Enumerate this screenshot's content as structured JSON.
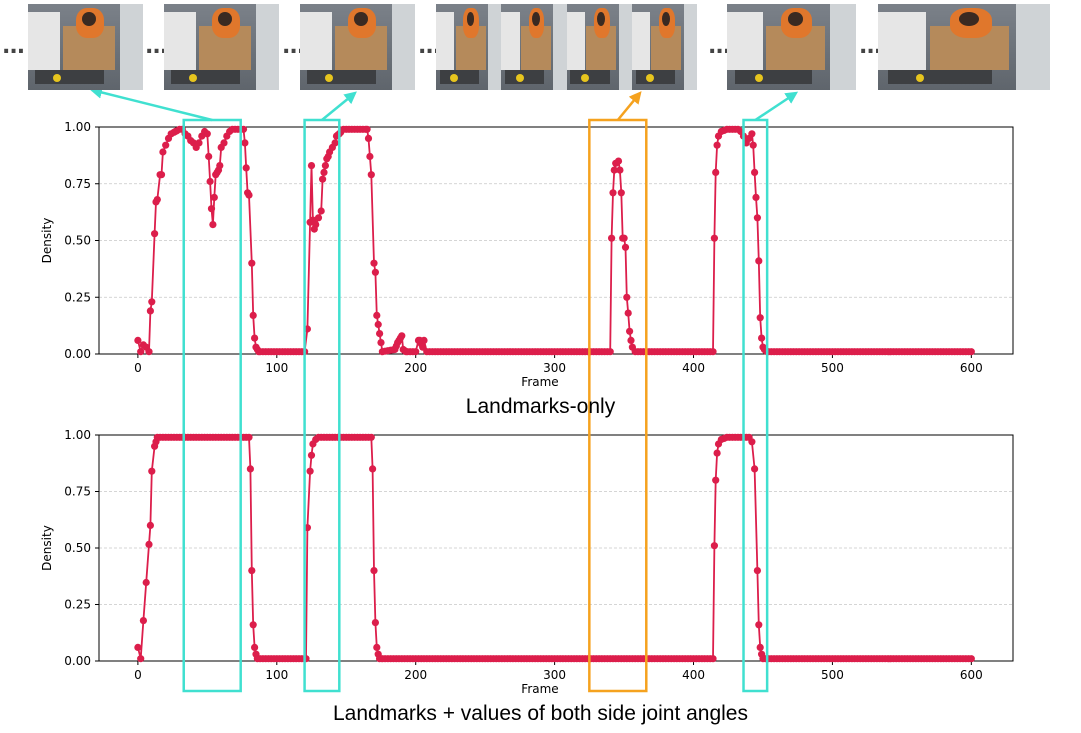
{
  "captions": {
    "top": "Landmarks-only",
    "bottom": "Landmarks + values of both side joint angles"
  },
  "colors": {
    "series": "#dc1e4b",
    "highlight_cyan": "#40e0d0",
    "highlight_orange": "#f5a21f",
    "ellipsis": "#444444"
  },
  "video_strip": {
    "ellipsis": "...",
    "frames": [
      {
        "name": "frame-1",
        "panels": 1
      },
      {
        "name": "frame-2",
        "panels": 1
      },
      {
        "name": "frame-3",
        "panels": 1
      },
      {
        "name": "frame-4",
        "panels": 3
      },
      {
        "name": "frame-5",
        "panels": 1
      },
      {
        "name": "frame-6",
        "panels": 1
      },
      {
        "name": "frame-7",
        "panels": 1
      }
    ]
  },
  "highlights": [
    {
      "name": "highlight-1",
      "color": "cyan",
      "x_range": [
        33,
        74
      ]
    },
    {
      "name": "highlight-2",
      "color": "cyan",
      "x_range": [
        120,
        145
      ]
    },
    {
      "name": "highlight-3",
      "color": "orange",
      "x_range": [
        325,
        366
      ]
    },
    {
      "name": "highlight-4",
      "color": "cyan",
      "x_range": [
        436,
        453
      ]
    }
  ],
  "chart_data": [
    {
      "type": "line",
      "title": "",
      "xlabel": "Frame",
      "ylabel": "Density",
      "xlim": [
        -28,
        630
      ],
      "ylim": [
        0,
        1
      ],
      "xticks": [
        0,
        100,
        200,
        300,
        400,
        500,
        600
      ],
      "yticks": [
        "0.00",
        "0.25",
        "0.50",
        "0.75",
        "1.00"
      ],
      "grid": "horizontal-dashed",
      "default_value": 0.01,
      "points": [
        [
          0,
          0.06
        ],
        [
          2,
          0.01
        ],
        [
          4,
          0.04
        ],
        [
          6,
          0.03
        ],
        [
          8,
          0.01
        ],
        [
          9,
          0.19
        ],
        [
          10,
          0.23
        ],
        [
          12,
          0.53
        ],
        [
          13,
          0.67
        ],
        [
          14,
          0.68
        ],
        [
          16,
          0.79
        ],
        [
          17,
          0.79
        ],
        [
          18,
          0.89
        ],
        [
          20,
          0.92
        ],
        [
          22,
          0.95
        ],
        [
          24,
          0.97
        ],
        [
          27,
          0.98
        ],
        [
          30,
          0.99
        ],
        [
          32,
          0.99
        ],
        [
          34,
          0.97
        ],
        [
          36,
          0.96
        ],
        [
          38,
          0.94
        ],
        [
          40,
          0.93
        ],
        [
          42,
          0.91
        ],
        [
          44,
          0.93
        ],
        [
          46,
          0.96
        ],
        [
          48,
          0.98
        ],
        [
          50,
          0.97
        ],
        [
          51,
          0.87
        ],
        [
          52,
          0.76
        ],
        [
          53,
          0.64
        ],
        [
          54,
          0.57
        ],
        [
          55,
          0.69
        ],
        [
          56,
          0.79
        ],
        [
          57,
          0.8
        ],
        [
          58,
          0.81
        ],
        [
          59,
          0.83
        ],
        [
          60,
          0.91
        ],
        [
          62,
          0.93
        ],
        [
          64,
          0.96
        ],
        [
          66,
          0.98
        ],
        [
          68,
          0.99
        ],
        [
          72,
          0.99
        ],
        [
          76,
          0.99
        ],
        [
          77,
          0.93
        ],
        [
          79,
          0.71
        ],
        [
          80,
          0.7
        ],
        [
          82,
          0.4
        ],
        [
          83,
          0.17
        ],
        [
          84,
          0.07
        ],
        [
          85,
          0.03
        ],
        [
          87,
          0.01
        ],
        [
          120,
          0.01
        ],
        [
          122,
          0.11
        ],
        [
          124,
          0.58
        ],
        [
          125,
          0.83
        ],
        [
          126,
          0.59
        ],
        [
          127,
          0.55
        ],
        [
          128,
          0.57
        ],
        [
          130,
          0.6
        ],
        [
          132,
          0.63
        ],
        [
          133,
          0.77
        ],
        [
          134,
          0.8
        ],
        [
          135,
          0.83
        ],
        [
          136,
          0.86
        ],
        [
          137,
          0.87
        ],
        [
          138,
          0.89
        ],
        [
          140,
          0.91
        ],
        [
          142,
          0.93
        ],
        [
          143,
          0.96
        ],
        [
          145,
          0.97
        ],
        [
          148,
          0.99
        ],
        [
          165,
          0.99
        ],
        [
          166,
          0.95
        ],
        [
          167,
          0.87
        ],
        [
          168,
          0.79
        ],
        [
          170,
          0.4
        ],
        [
          171,
          0.36
        ],
        [
          172,
          0.17
        ],
        [
          173,
          0.13
        ],
        [
          174,
          0.09
        ],
        [
          175,
          0.05
        ],
        [
          176,
          0.01
        ],
        [
          185,
          0.02
        ],
        [
          187,
          0.05
        ],
        [
          189,
          0.07
        ],
        [
          190,
          0.08
        ],
        [
          191,
          0.02
        ],
        [
          193,
          0.01
        ],
        [
          200,
          0.01
        ],
        [
          202,
          0.06
        ],
        [
          203,
          0.06
        ],
        [
          205,
          0.03
        ],
        [
          206,
          0.06
        ],
        [
          208,
          0.01
        ],
        [
          340,
          0.01
        ],
        [
          341,
          0.51
        ],
        [
          342,
          0.71
        ],
        [
          343,
          0.81
        ],
        [
          344,
          0.84
        ],
        [
          346,
          0.85
        ],
        [
          347,
          0.81
        ],
        [
          348,
          0.71
        ],
        [
          349,
          0.51
        ],
        [
          350,
          0.51
        ],
        [
          351,
          0.47
        ],
        [
          352,
          0.25
        ],
        [
          353,
          0.18
        ],
        [
          354,
          0.1
        ],
        [
          355,
          0.06
        ],
        [
          356,
          0.03
        ],
        [
          358,
          0.01
        ],
        [
          414,
          0.01
        ],
        [
          415,
          0.51
        ],
        [
          416,
          0.8
        ],
        [
          417,
          0.92
        ],
        [
          418,
          0.96
        ],
        [
          420,
          0.98
        ],
        [
          424,
          0.99
        ],
        [
          430,
          0.99
        ],
        [
          432,
          0.99
        ],
        [
          434,
          0.98
        ],
        [
          436,
          0.96
        ],
        [
          438,
          0.93
        ],
        [
          440,
          0.95
        ],
        [
          442,
          0.97
        ],
        [
          443,
          0.92
        ],
        [
          444,
          0.8
        ],
        [
          445,
          0.69
        ],
        [
          446,
          0.6
        ],
        [
          447,
          0.41
        ],
        [
          448,
          0.16
        ],
        [
          449,
          0.07
        ],
        [
          450,
          0.03
        ],
        [
          451,
          0.02
        ],
        [
          453,
          0.01
        ],
        [
          600,
          0.01
        ]
      ]
    },
    {
      "type": "line",
      "title": "",
      "xlabel": "Frame",
      "ylabel": "Density",
      "xlim": [
        -28,
        630
      ],
      "ylim": [
        0,
        1
      ],
      "xticks": [
        0,
        100,
        200,
        300,
        400,
        500,
        600
      ],
      "yticks": [
        "0.00",
        "0.25",
        "0.50",
        "0.75",
        "1.00"
      ],
      "grid": "horizontal-dashed",
      "default_value": 0.01,
      "points": [
        [
          0,
          0.06
        ],
        [
          2,
          0.01
        ],
        [
          9,
          0.6
        ],
        [
          10,
          0.84
        ],
        [
          12,
          0.95
        ],
        [
          13,
          0.97
        ],
        [
          14,
          0.99
        ],
        [
          20,
          0.99
        ],
        [
          40,
          0.99
        ],
        [
          60,
          0.99
        ],
        [
          80,
          0.99
        ],
        [
          81,
          0.85
        ],
        [
          82,
          0.4
        ],
        [
          83,
          0.16
        ],
        [
          84,
          0.06
        ],
        [
          85,
          0.03
        ],
        [
          86,
          0.01
        ],
        [
          121,
          0.01
        ],
        [
          122,
          0.59
        ],
        [
          124,
          0.84
        ],
        [
          125,
          0.91
        ],
        [
          126,
          0.96
        ],
        [
          128,
          0.98
        ],
        [
          130,
          0.99
        ],
        [
          150,
          0.99
        ],
        [
          168,
          0.99
        ],
        [
          169,
          0.85
        ],
        [
          170,
          0.4
        ],
        [
          171,
          0.17
        ],
        [
          172,
          0.06
        ],
        [
          173,
          0.03
        ],
        [
          174,
          0.01
        ],
        [
          414,
          0.01
        ],
        [
          415,
          0.51
        ],
        [
          416,
          0.8
        ],
        [
          417,
          0.92
        ],
        [
          418,
          0.96
        ],
        [
          420,
          0.98
        ],
        [
          424,
          0.99
        ],
        [
          440,
          0.99
        ],
        [
          442,
          0.97
        ],
        [
          444,
          0.85
        ],
        [
          446,
          0.4
        ],
        [
          447,
          0.16
        ],
        [
          448,
          0.06
        ],
        [
          449,
          0.03
        ],
        [
          450,
          0.01
        ],
        [
          600,
          0.01
        ]
      ]
    }
  ]
}
